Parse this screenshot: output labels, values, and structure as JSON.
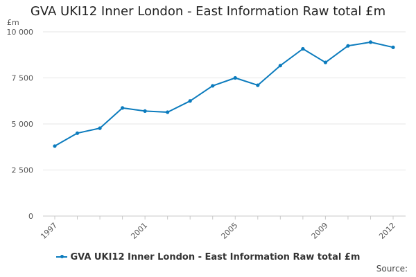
{
  "chart_data": {
    "type": "line",
    "title": "GVA UKI12 Inner London - East Information Raw total £m",
    "ylabel": "£m",
    "xlabel": "",
    "x": [
      1997,
      1998,
      1999,
      2000,
      2001,
      2002,
      2003,
      2004,
      2005,
      2006,
      2007,
      2008,
      2009,
      2010,
      2011,
      2012
    ],
    "series": [
      {
        "name": "GVA UKI12 Inner London - East Information Raw total £m",
        "values": [
          3800,
          4500,
          4770,
          5870,
          5700,
          5640,
          6250,
          7070,
          7500,
          7100,
          8170,
          9080,
          8340,
          9240,
          9440,
          9160
        ]
      }
    ],
    "ylim": [
      0,
      10000
    ],
    "yticks": [
      0,
      2500,
      5000,
      7500,
      10000
    ],
    "ytick_labels": [
      "0",
      "2 500",
      "5 000",
      "7 500",
      "10 000"
    ],
    "xticks": [
      1997,
      2001,
      2005,
      2009,
      2012
    ],
    "xtick_labels": [
      "1997",
      "2001",
      "2005",
      "2009",
      "2012"
    ],
    "grid": true,
    "legend_position": "bottom-center",
    "colors": {
      "series": "#0b7bbd",
      "grid": "#e6e6e6",
      "axis": "#c8c8c8"
    }
  },
  "source_label": "Source:"
}
